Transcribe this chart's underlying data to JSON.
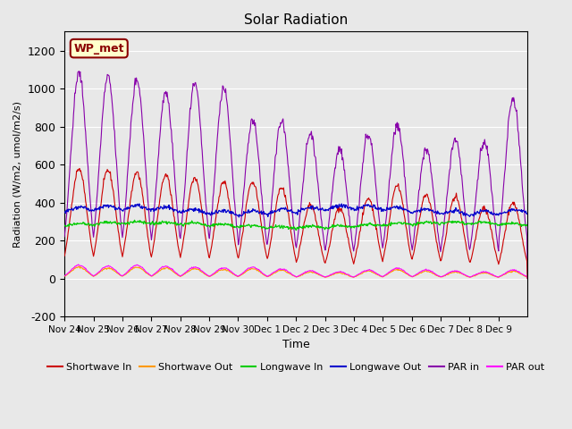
{
  "title": "Solar Radiation",
  "ylabel": "Radiation (W/m2, umol/m2/s)",
  "xlabel": "Time",
  "ylim": [
    -200,
    1300
  ],
  "yticks": [
    -200,
    0,
    200,
    400,
    600,
    800,
    1000,
    1200
  ],
  "background_color": "#e8e8e8",
  "annotation_text": "WP_met",
  "annotation_bg": "#ffffcc",
  "annotation_border": "#8b0000",
  "colors": {
    "shortwave_in": "#cc0000",
    "shortwave_out": "#ff9900",
    "longwave_in": "#00cc00",
    "longwave_out": "#0000cc",
    "par_in": "#8800aa",
    "par_out": "#ff00ff"
  },
  "xtick_labels": [
    "Nov 24",
    "Nov 25",
    "Nov 26",
    "Nov 27",
    "Nov 28",
    "Nov 29",
    "Nov 30",
    "Dec 1",
    "Dec 2",
    "Dec 3",
    "Dec 4",
    "Dec 5",
    "Dec 6",
    "Dec 7",
    "Dec 8",
    "Dec 9"
  ],
  "legend_labels": [
    "Shortwave In",
    "Shortwave Out",
    "Longwave In",
    "Longwave Out",
    "PAR in",
    "PAR out"
  ],
  "n_days": 16,
  "pts_per_day": 48,
  "par_in_peaks": [
    1080,
    1060,
    1050,
    980,
    1020,
    1000,
    830,
    830,
    760,
    680,
    760,
    810,
    680,
    730,
    720,
    950
  ],
  "sw_in_peaks": [
    580,
    570,
    560,
    545,
    530,
    510,
    510,
    480,
    390,
    370,
    420,
    490,
    440,
    430,
    370,
    400
  ],
  "par_out_peaks": [
    70,
    65,
    70,
    65,
    60,
    55,
    60,
    50,
    40,
    35,
    45,
    55,
    45,
    40,
    35,
    45
  ]
}
